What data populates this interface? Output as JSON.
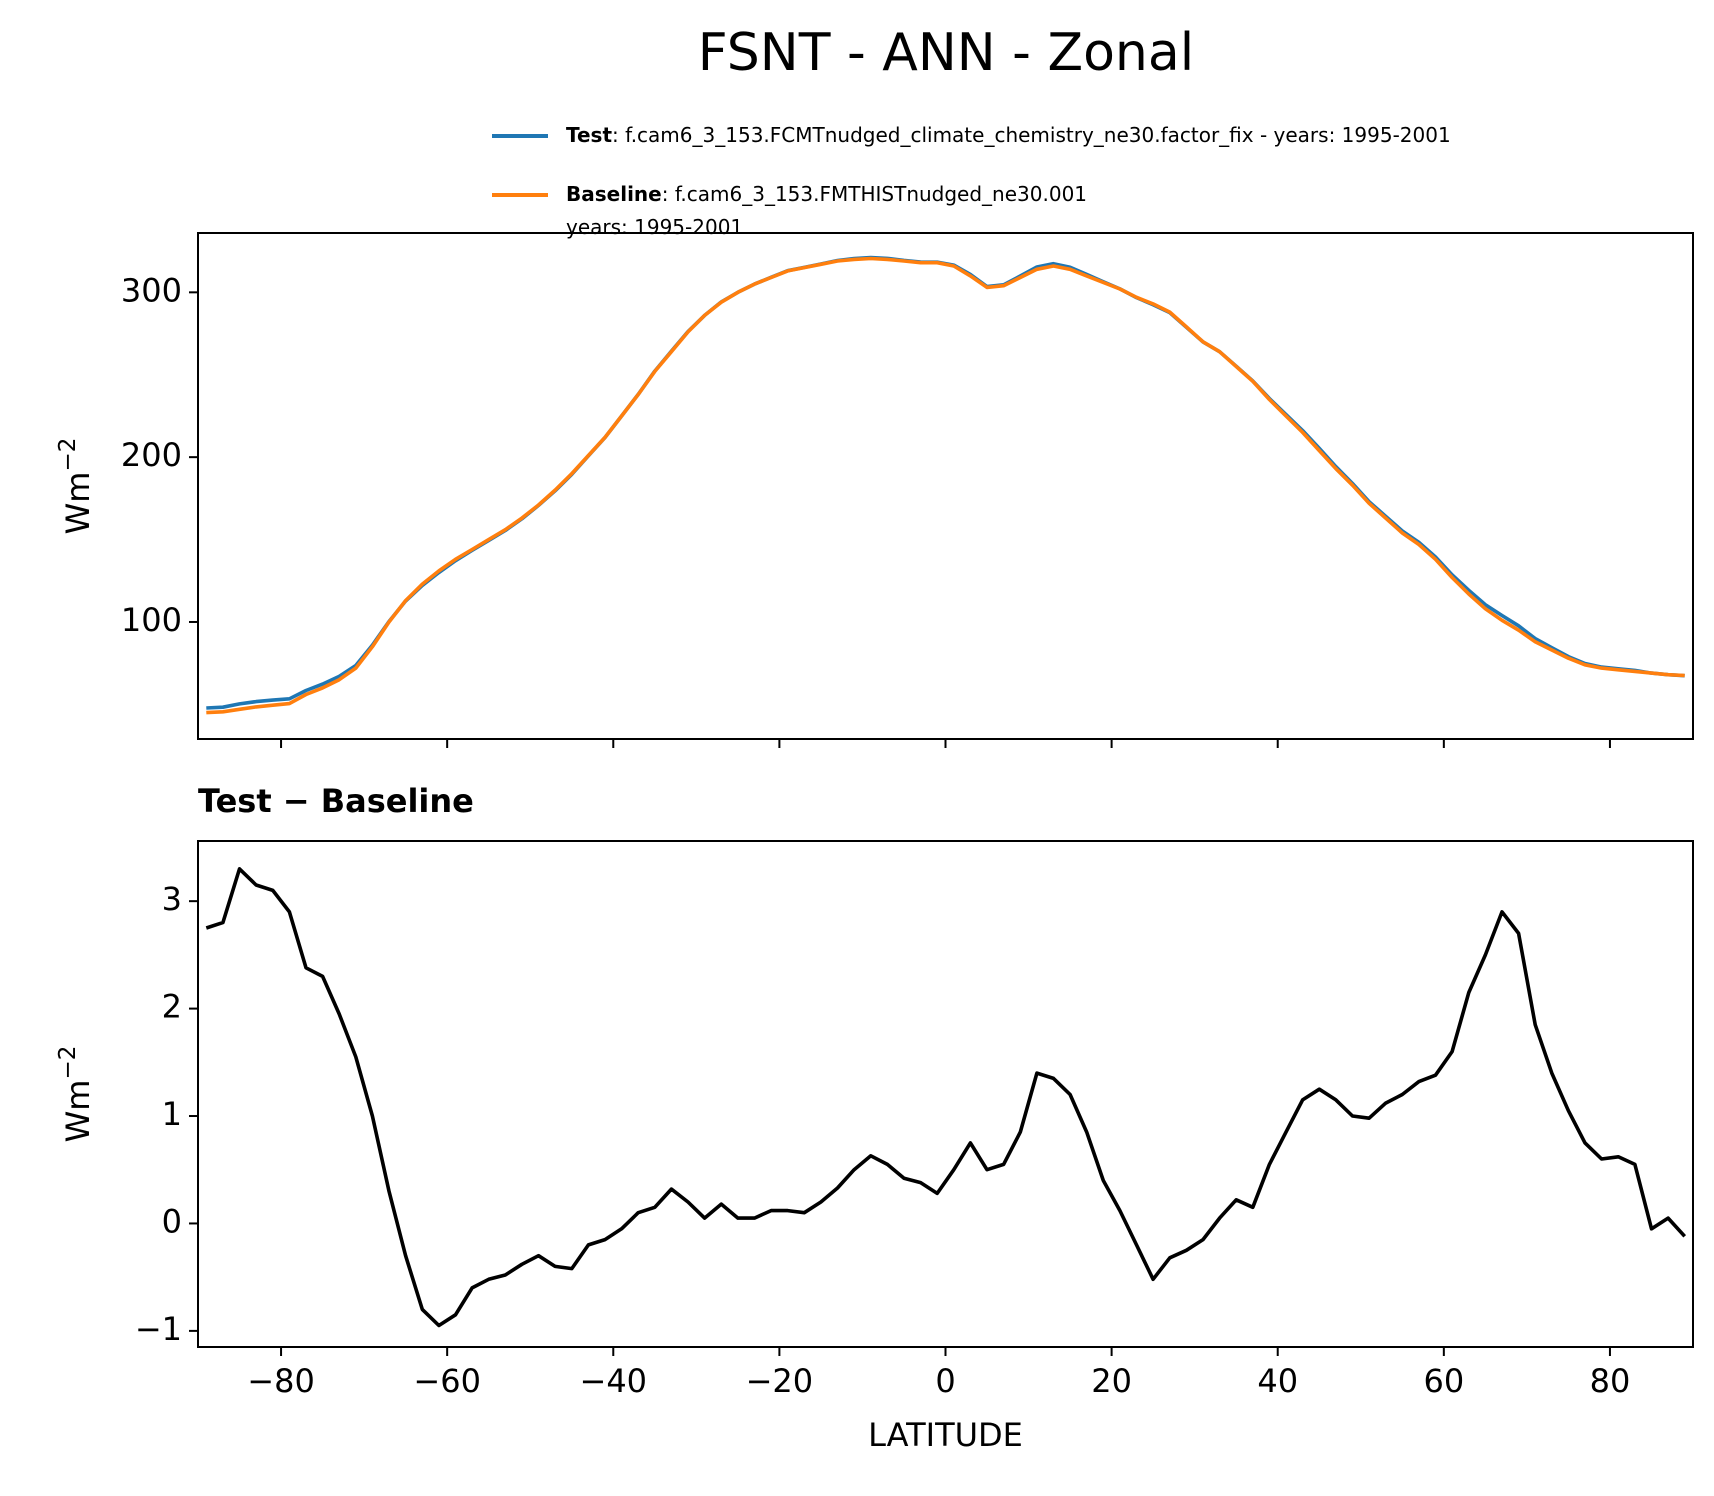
{
  "figure_title": "FSNT - ANN - Zonal",
  "chart_data": [
    {
      "type": "line",
      "x": [
        -89,
        -87,
        -85,
        -83,
        -81,
        -79,
        -77,
        -75,
        -73,
        -71,
        -69,
        -67,
        -65,
        -63,
        -61,
        -59,
        -57,
        -55,
        -53,
        -51,
        -49,
        -47,
        -45,
        -43,
        -41,
        -39,
        -37,
        -35,
        -33,
        -31,
        -29,
        -27,
        -25,
        -23,
        -21,
        -19,
        -17,
        -15,
        -13,
        -11,
        -9,
        -7,
        -5,
        -3,
        -1,
        1,
        3,
        5,
        7,
        9,
        11,
        13,
        15,
        17,
        19,
        21,
        23,
        25,
        27,
        29,
        31,
        33,
        35,
        37,
        39,
        41,
        43,
        45,
        47,
        49,
        51,
        53,
        55,
        57,
        59,
        61,
        63,
        65,
        67,
        69,
        71,
        73,
        75,
        77,
        79,
        81,
        83,
        85,
        87,
        89
      ],
      "series": [
        {
          "name": "Test",
          "description": [
            ": f.cam6_3_153.FCMTnudged_climate_chemistry_ne30.factor_fix - years: 1995-2001"
          ],
          "color": "#1f77b4",
          "values": [
            47.8,
            48.3,
            50.3,
            51.7,
            52.6,
            53.4,
            58.4,
            62.3,
            67,
            73.6,
            86,
            100.3,
            112.7,
            122.2,
            130,
            137.2,
            143.4,
            149.5,
            155.5,
            162.6,
            170.7,
            179.6,
            189.6,
            200.8,
            211.9,
            225,
            238.1,
            252.2,
            264.3,
            276.2,
            286,
            294.2,
            300,
            305,
            309.1,
            313.1,
            315.1,
            317.2,
            319.3,
            320.5,
            321.1,
            320.6,
            319.4,
            318.4,
            318.3,
            316.5,
            310.8,
            303.5,
            304.6,
            309.9,
            315.4,
            317.4,
            315.2,
            310.9,
            306.4,
            302.1,
            296.8,
            292.5,
            287.7,
            278.8,
            269.9,
            264,
            255.2,
            246.2,
            235.6,
            225.9,
            216.2,
            205.3,
            194.2,
            184,
            173,
            164.1,
            155.2,
            148.3,
            139.4,
            128.6,
            119.2,
            110.5,
            103.9,
            97.7,
            89.9,
            84.4,
            79,
            74.8,
            72.6,
            71.6,
            70.6,
            69,
            68,
            67.4
          ]
        },
        {
          "name": "Baseline",
          "description": [
            ": f.cam6_3_153.FMTHISTnudged_ne30.001",
            "years: 1995-2001"
          ],
          "color": "#ff7f0e",
          "values": [
            45,
            45.5,
            47,
            48.5,
            49.5,
            50.5,
            56,
            60,
            65,
            72,
            85,
            100,
            113,
            123,
            131,
            138,
            144,
            150,
            156,
            163,
            171,
            180,
            190,
            201,
            212,
            225,
            238,
            252,
            264,
            276,
            286,
            294,
            300,
            305,
            309,
            313,
            315,
            317,
            319,
            320,
            320.5,
            320,
            319,
            318,
            318,
            316,
            310,
            303,
            304,
            309,
            314,
            316,
            314,
            310,
            306,
            302,
            297,
            293,
            288,
            279,
            270,
            264,
            255,
            246,
            235,
            225,
            215,
            204,
            193,
            183,
            172,
            163,
            154,
            147,
            138,
            127,
            117,
            108,
            101,
            95,
            88,
            83,
            78,
            74,
            72,
            71,
            70,
            69,
            68,
            67.5
          ]
        }
      ],
      "xlim": [
        -90,
        90
      ],
      "xticks": [
        -80,
        -60,
        -40,
        -20,
        0,
        20,
        40,
        60,
        80
      ],
      "ylim": [
        29,
        336
      ],
      "yticks": [
        100,
        200,
        300
      ],
      "ylabel_base": "Wm",
      "ylabel_exponent": "−2",
      "legend": "upper right"
    },
    {
      "type": "line",
      "title": "Test − Baseline",
      "x": [
        -89,
        -87,
        -85,
        -83,
        -81,
        -79,
        -77,
        -75,
        -73,
        -71,
        -69,
        -67,
        -65,
        -63,
        -61,
        -59,
        -57,
        -55,
        -53,
        -51,
        -49,
        -47,
        -45,
        -43,
        -41,
        -39,
        -37,
        -35,
        -33,
        -31,
        -29,
        -27,
        -25,
        -23,
        -21,
        -19,
        -17,
        -15,
        -13,
        -11,
        -9,
        -7,
        -5,
        -3,
        -1,
        1,
        3,
        5,
        7,
        9,
        11,
        13,
        15,
        17,
        19,
        21,
        23,
        25,
        27,
        29,
        31,
        33,
        35,
        37,
        39,
        41,
        43,
        45,
        47,
        49,
        51,
        53,
        55,
        57,
        59,
        61,
        63,
        65,
        67,
        69,
        71,
        73,
        75,
        77,
        79,
        81,
        83,
        85,
        87,
        89
      ],
      "series": [
        {
          "color": "#000000",
          "values": [
            2.75,
            2.8,
            3.3,
            3.15,
            3.1,
            2.9,
            2.38,
            2.3,
            1.95,
            1.55,
            1.0,
            0.3,
            -0.3,
            -0.8,
            -0.95,
            -0.85,
            -0.6,
            -0.52,
            -0.48,
            -0.38,
            -0.3,
            -0.4,
            -0.42,
            -0.2,
            -0.15,
            -0.05,
            0.1,
            0.15,
            0.32,
            0.2,
            0.05,
            0.18,
            0.05,
            0.05,
            0.12,
            0.12,
            0.1,
            0.2,
            0.33,
            0.5,
            0.63,
            0.55,
            0.42,
            0.38,
            0.28,
            0.5,
            0.75,
            0.5,
            0.55,
            0.85,
            1.4,
            1.35,
            1.2,
            0.85,
            0.4,
            0.12,
            -0.2,
            -0.52,
            -0.32,
            -0.25,
            -0.15,
            0.05,
            0.22,
            0.15,
            0.55,
            0.85,
            1.15,
            1.25,
            1.15,
            1.0,
            0.98,
            1.12,
            1.2,
            1.32,
            1.38,
            1.6,
            2.15,
            2.5,
            2.9,
            2.7,
            1.85,
            1.4,
            1.05,
            0.75,
            0.6,
            0.62,
            0.55,
            -0.05,
            0.05,
            -0.12
          ]
        }
      ],
      "xlim": [
        -90,
        90
      ],
      "xticks": [
        {
          "value": -80,
          "label": "−80"
        },
        {
          "value": -60,
          "label": "−60"
        },
        {
          "value": -40,
          "label": "−40"
        },
        {
          "value": -20,
          "label": "−20"
        },
        0,
        20,
        40,
        60,
        80
      ],
      "ylim": [
        -1.15,
        3.56
      ],
      "yticks": [
        {
          "value": -1,
          "label": "−1"
        },
        0,
        1,
        2,
        3
      ],
      "ylabel_base": "Wm",
      "ylabel_exponent": "−2",
      "xlabel": "LATITUDE"
    }
  ]
}
